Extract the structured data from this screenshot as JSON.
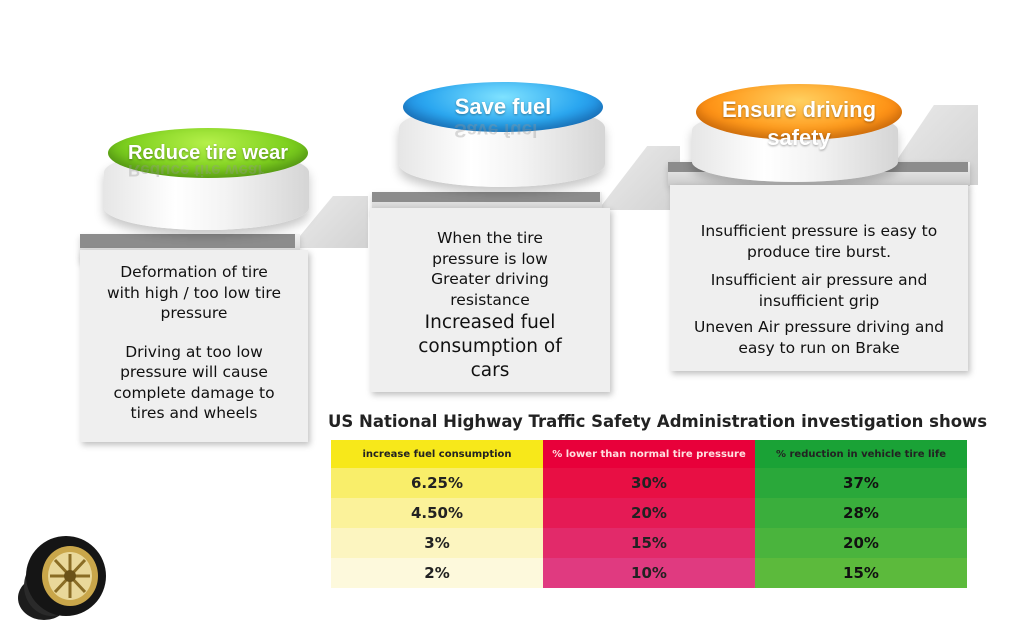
{
  "stages": [
    {
      "title": "Reduce tire wear",
      "color": "#7fd11f",
      "paragraphs": [
        "Deformation of tire with high / too low tire pressure",
        "Driving at too low pressure will cause complete damage to tires and wheels"
      ]
    },
    {
      "title": "Save fuel",
      "color": "#2ba7f0",
      "paragraphs": [
        "When the tire pressure is low Greater driving resistance",
        "Increased fuel consumption of cars"
      ]
    },
    {
      "title": "Ensure driving safety",
      "color": "#ff9a1c",
      "paragraphs": [
        "Insufficient pressure is easy to produce tire burst.",
        "Insufficient air pressure and insufficient grip",
        "Uneven Air pressure driving and easy to run on Brake"
      ]
    }
  ],
  "survey": {
    "title": "US National Highway Traffic Safety Administration investigation shows",
    "headers": [
      "increase fuel consumption",
      "% lower than normal tire pressure",
      "% reduction in vehicle tire life"
    ],
    "rows": [
      [
        "6.25%",
        "30%",
        "37%"
      ],
      [
        "4.50%",
        "20%",
        "28%"
      ],
      [
        "3%",
        "15%",
        "20%"
      ],
      [
        "2%",
        "10%",
        "15%"
      ]
    ],
    "colors": {
      "col1": [
        "#f7e81a",
        "#f9ee6a",
        "#fbf29a",
        "#fcf5c0",
        "#fdf9dc"
      ],
      "col2": [
        "#e8003a",
        "#e80f44",
        "#e51a55",
        "#e22a6a",
        "#e03a80"
      ],
      "col3": [
        "#1aa236",
        "#2aa83a",
        "#3aae3c",
        "#4ab43d",
        "#5cba3c"
      ]
    }
  },
  "icon": "tire-wheel-icon"
}
